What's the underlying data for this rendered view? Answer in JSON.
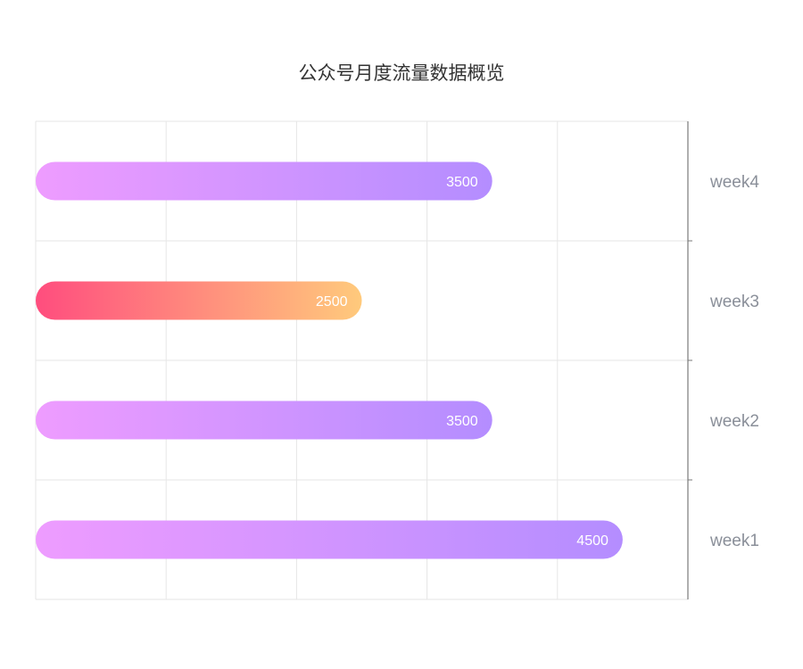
{
  "chart_data": {
    "type": "bar",
    "orientation": "horizontal",
    "title": "公众号月度流量数据概览",
    "categories": [
      "week1",
      "week2",
      "week3",
      "week4"
    ],
    "values": [
      4500,
      3500,
      2500,
      3500
    ],
    "highlight_category": "week3",
    "xlim": [
      0,
      5000
    ],
    "x_gridline_step": 1000,
    "xlabel": "",
    "ylabel": "",
    "category_axis_side": "right",
    "show_x_tick_labels": false,
    "grid": true,
    "legend": "none",
    "colors": {
      "default_start": "#EE9CFF",
      "default_end": "#B48DFF",
      "highlight_start": "#FF4D7E",
      "highlight_end": "#FFCA7C",
      "grid": "#e6e6e6",
      "axis": "#7a7a7a"
    }
  }
}
